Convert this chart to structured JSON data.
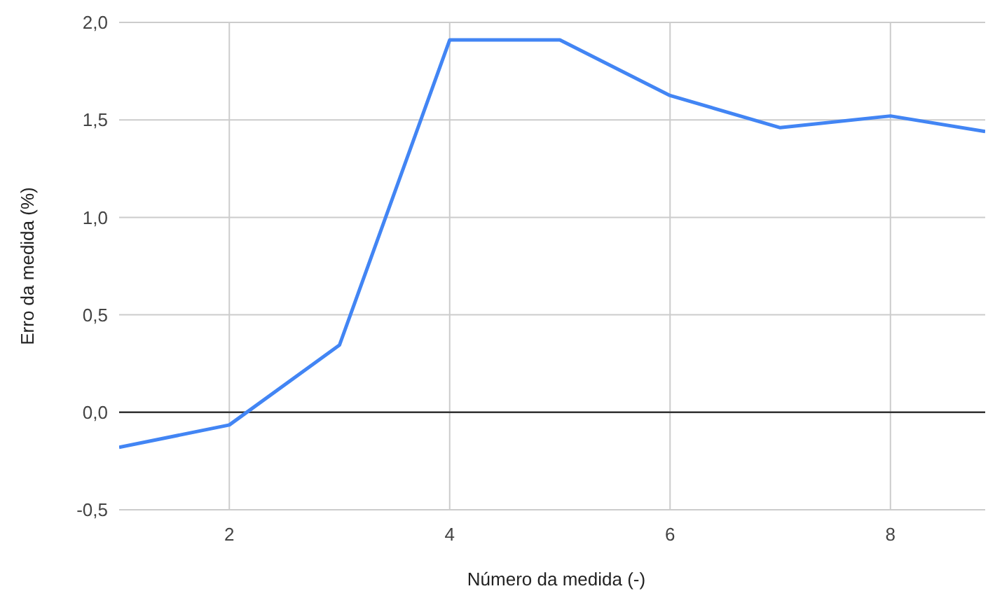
{
  "chart_data": {
    "type": "line",
    "xlabel": "Número da medida (-)",
    "ylabel": "Erro da medida (%)",
    "x": [
      1,
      2,
      3,
      4,
      5,
      6,
      7,
      8,
      8.86
    ],
    "series": [
      {
        "color": "#4285f4",
        "values": [
          -0.18,
          -0.065,
          0.345,
          1.91,
          1.91,
          1.625,
          1.46,
          1.52,
          1.44
        ]
      }
    ],
    "xlim": [
      1,
      8.86
    ],
    "xticks": [
      2,
      4,
      6,
      8
    ],
    "ylim": [
      -0.5,
      2
    ],
    "yticks": [
      {
        "value": -0.5,
        "label": "-0,5"
      },
      {
        "value": 0,
        "label": "0,0"
      },
      {
        "value": 0.5,
        "label": "0,5"
      },
      {
        "value": 1,
        "label": "1,0"
      },
      {
        "value": 1.5,
        "label": "1,5"
      },
      {
        "value": 2,
        "label": "2,0"
      }
    ],
    "ref_lines": [
      {
        "axis": "y",
        "value": 0,
        "color": "#333333"
      }
    ],
    "grid": true,
    "marker": "none",
    "line_style": "solid"
  }
}
